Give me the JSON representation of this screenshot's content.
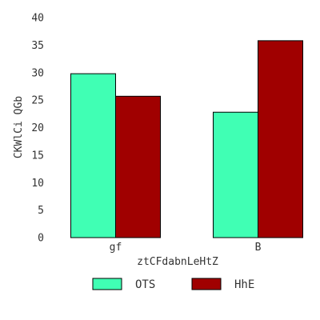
{
  "chart_data": {
    "type": "bar",
    "title": "",
    "xlabel": "ztCFdabnLeHtZ",
    "ylabel": "CKWlCi QGb",
    "categories": [
      "gf",
      "B"
    ],
    "series": [
      {
        "name": "OTS",
        "color": "#40ffb4",
        "values": [
          29.8,
          22.8
        ]
      },
      {
        "name": "HhE",
        "color": "#a00000",
        "values": [
          25.7,
          35.8
        ]
      }
    ],
    "ylim": [
      0,
      40
    ],
    "yticks": [
      0,
      5,
      10,
      15,
      20,
      25,
      30,
      35,
      40
    ],
    "grid": false,
    "legend_position": "bottom"
  }
}
